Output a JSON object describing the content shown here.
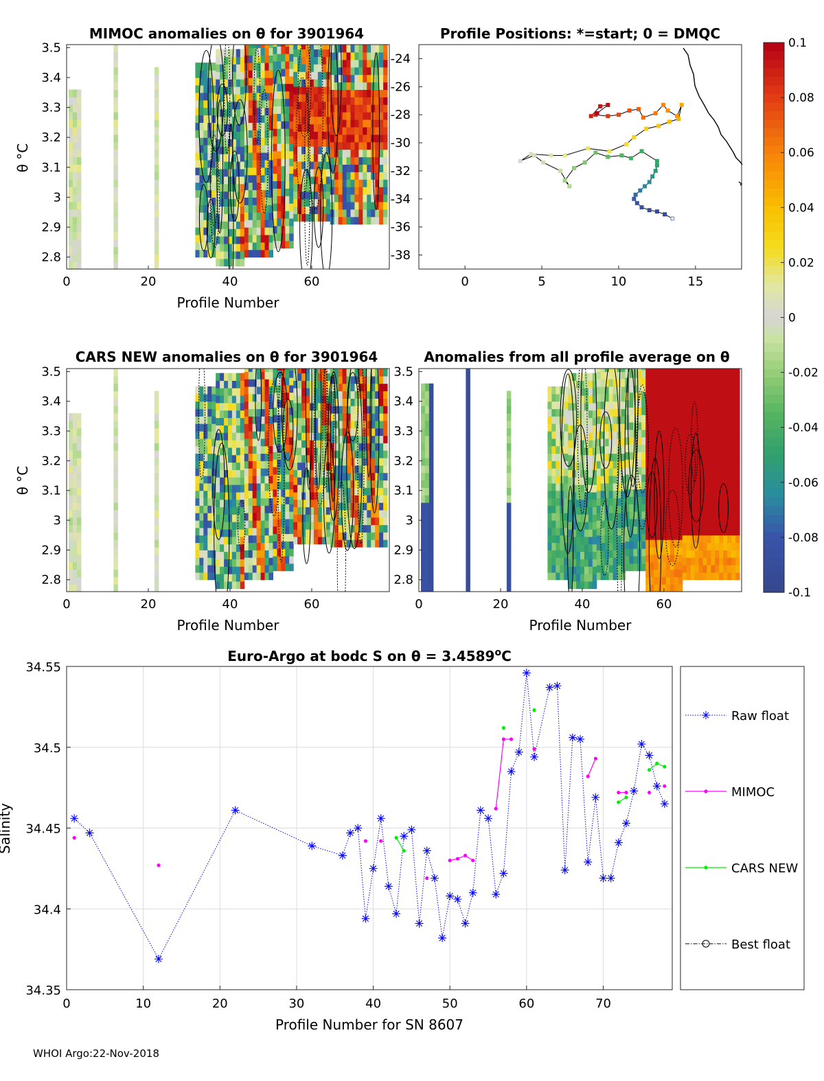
{
  "footer": "WHOI Argo:22-Nov-2018",
  "chart_data": [
    {
      "id": "mimoc",
      "type": "heatmap",
      "title": "MIMOC anomalies on θ  for 3901964",
      "xlabel": "Profile Number",
      "ylabel": "θ °C",
      "xlim": [
        0,
        79
      ],
      "ylim": [
        2.76,
        3.51
      ],
      "xticks": [
        "0",
        "20",
        "40",
        "60"
      ],
      "yticks": [
        "2.8",
        "2.9",
        "3",
        "3.1",
        "3.2",
        "3.3",
        "3.4",
        "3.5"
      ],
      "colorbar": {
        "label_ticks": [
          "0.1",
          "0.08",
          "0.06",
          "0.04",
          "0.02",
          "0",
          "-0.02",
          "-0.04",
          "-0.06",
          "-0.08",
          "-0.1"
        ],
        "range": [
          -0.1,
          0.1
        ],
        "colormap": "parula-like-diverging"
      }
    },
    {
      "id": "positions",
      "type": "scatter",
      "title": "Profile Positions: *=start; 0 = DMQC",
      "xlim": [
        -3,
        18
      ],
      "ylim": [
        -39,
        -23
      ],
      "xticks": [
        "0",
        "5",
        "10",
        "15"
      ],
      "yticks": [
        "-24",
        "-26",
        "-28",
        "-30",
        "-32",
        "-34",
        "-36",
        "-38"
      ],
      "track": [
        [
          13.5,
          -35.4
        ],
        [
          13.0,
          -35.1
        ],
        [
          12.5,
          -34.9
        ],
        [
          12.0,
          -34.8
        ],
        [
          11.5,
          -34.6
        ],
        [
          11.2,
          -34.3
        ],
        [
          11.0,
          -34.0
        ],
        [
          11.1,
          -33.7
        ],
        [
          11.4,
          -33.4
        ],
        [
          11.7,
          -33.1
        ],
        [
          12.0,
          -32.8
        ],
        [
          12.2,
          -32.4
        ],
        [
          12.4,
          -32.0
        ],
        [
          12.5,
          -31.6
        ],
        [
          12.5,
          -31.3
        ],
        [
          11.5,
          -30.6
        ],
        [
          10.8,
          -31.1
        ],
        [
          10.2,
          -30.9
        ],
        [
          9.3,
          -31.0
        ],
        [
          8.5,
          -30.7
        ],
        [
          7.8,
          -31.4
        ],
        [
          7.1,
          -31.8
        ],
        [
          6.5,
          -32.7
        ],
        [
          6.8,
          -33.1
        ],
        [
          6.2,
          -32.0
        ],
        [
          5.1,
          -31.4
        ],
        [
          4.5,
          -30.9
        ],
        [
          3.6,
          -31.3
        ],
        [
          4.3,
          -30.8
        ],
        [
          5.6,
          -30.9
        ],
        [
          6.5,
          -30.9
        ],
        [
          8.0,
          -30.4
        ],
        [
          9.4,
          -30.6
        ],
        [
          10.5,
          -30.1
        ],
        [
          11.0,
          -29.6
        ],
        [
          11.8,
          -29.0
        ],
        [
          12.6,
          -28.8
        ],
        [
          13.3,
          -28.5
        ],
        [
          13.9,
          -28.3
        ],
        [
          14.1,
          -27.3
        ],
        [
          13.8,
          -28.1
        ],
        [
          13.2,
          -27.7
        ],
        [
          12.9,
          -27.3
        ],
        [
          12.4,
          -27.9
        ],
        [
          11.6,
          -28.2
        ],
        [
          11.3,
          -27.6
        ],
        [
          10.7,
          -27.7
        ],
        [
          10.0,
          -28.0
        ],
        [
          9.3,
          -28.1
        ],
        [
          8.5,
          -28.0
        ],
        [
          8.2,
          -28.1
        ],
        [
          8.8,
          -27.4
        ],
        [
          9.3,
          -27.3
        ],
        [
          8.6,
          -27.9
        ]
      ]
    },
    {
      "id": "cars",
      "type": "heatmap",
      "title": "CARS NEW anomalies on θ for 3901964",
      "xlabel": "Profile Number",
      "ylabel": "θ °C",
      "xlim": [
        0,
        79
      ],
      "ylim": [
        2.76,
        3.51
      ],
      "xticks": [
        "0",
        "20",
        "40",
        "60"
      ],
      "yticks": [
        "2.8",
        "2.9",
        "3",
        "3.1",
        "3.2",
        "3.3",
        "3.4",
        "3.5"
      ]
    },
    {
      "id": "allprof",
      "type": "heatmap",
      "title": "Anomalies from all profile average on θ",
      "xlabel": "Profile Number",
      "xlim": [
        0,
        79
      ],
      "ylim": [
        2.76,
        3.51
      ],
      "xticks": [
        "0",
        "20",
        "40",
        "60"
      ],
      "yticks": [
        "2.8",
        "2.9",
        "3",
        "3.1",
        "3.2",
        "3.3",
        "3.4",
        "3.5"
      ]
    },
    {
      "id": "salinity",
      "type": "line",
      "title": "Euro-Argo at bodc S on θ = 3.4589°C",
      "title_prefix": "Euro-Argo at bodc S on θ = 3.4589",
      "title_sup": "o",
      "title_suffix": "C",
      "xlabel": "Profile Number for SN 8607",
      "ylabel": "Salinity",
      "xlim": [
        0,
        79
      ],
      "ylim": [
        34.35,
        34.55
      ],
      "xticks": [
        "0",
        "10",
        "20",
        "30",
        "40",
        "50",
        "60",
        "70"
      ],
      "yticks": [
        "34.35",
        "34.4",
        "34.45",
        "34.5",
        "34.55"
      ],
      "legend": [
        "Raw float",
        "MIMOC",
        "CARS NEW",
        "Best float"
      ],
      "series": [
        {
          "name": "Raw float",
          "color": "#0000ff",
          "points": [
            [
              1,
              34.456
            ],
            [
              3,
              34.447
            ],
            [
              12,
              34.369
            ],
            [
              22,
              34.461
            ],
            [
              32,
              34.439
            ],
            [
              36,
              34.433
            ],
            [
              37,
              34.447
            ],
            [
              38,
              34.45
            ],
            [
              39,
              34.394
            ],
            [
              40,
              34.425
            ],
            [
              41,
              34.456
            ],
            [
              42,
              34.414
            ],
            [
              43,
              34.397
            ],
            [
              44,
              34.445
            ],
            [
              45,
              34.449
            ],
            [
              46,
              34.391
            ],
            [
              47,
              34.436
            ],
            [
              48,
              34.419
            ],
            [
              49,
              34.382
            ],
            [
              50,
              34.408
            ],
            [
              51,
              34.406
            ],
            [
              52,
              34.391
            ],
            [
              53,
              34.41
            ],
            [
              54,
              34.461
            ],
            [
              55,
              34.456
            ],
            [
              56,
              34.409
            ],
            [
              57,
              34.422
            ],
            [
              58,
              34.485
            ],
            [
              59,
              34.497
            ],
            [
              60,
              34.546
            ],
            [
              61,
              34.494
            ],
            [
              63,
              34.537
            ],
            [
              64,
              34.538
            ],
            [
              65,
              34.424
            ],
            [
              66,
              34.506
            ],
            [
              67,
              34.505
            ],
            [
              68,
              34.429
            ],
            [
              69,
              34.469
            ],
            [
              70,
              34.419
            ],
            [
              71,
              34.419
            ],
            [
              72,
              34.441
            ],
            [
              73,
              34.453
            ],
            [
              74,
              34.473
            ],
            [
              75,
              34.502
            ],
            [
              76,
              34.495
            ],
            [
              77,
              34.476
            ],
            [
              78,
              34.465
            ]
          ]
        },
        {
          "name": "MIMOC",
          "color": "#ff00ff",
          "segments": [
            [
              [
                1,
                34.444
              ]
            ],
            [
              [
                12,
                34.427
              ]
            ],
            [
              [
                39,
                34.442
              ]
            ],
            [
              [
                41,
                34.442
              ]
            ],
            [
              [
                47,
                34.419
              ]
            ],
            [
              [
                50,
                34.43
              ],
              [
                51,
                34.431
              ],
              [
                52,
                34.433
              ],
              [
                53,
                34.43
              ]
            ],
            [
              [
                56,
                34.462
              ],
              [
                57,
                34.505
              ],
              [
                58,
                34.505
              ]
            ],
            [
              [
                61,
                34.499
              ]
            ],
            [
              [
                68,
                34.482
              ],
              [
                69,
                34.493
              ]
            ],
            [
              [
                72,
                34.472
              ],
              [
                73,
                34.472
              ]
            ],
            [
              [
                76,
                34.472
              ]
            ],
            [
              [
                78,
                34.476
              ]
            ]
          ]
        },
        {
          "name": "CARS NEW",
          "color": "#00ee00",
          "segments": [
            [
              [
                43,
                34.444
              ],
              [
                44,
                34.436
              ]
            ],
            [
              [
                57,
                34.512
              ]
            ],
            [
              [
                61,
                34.523
              ]
            ],
            [
              [
                72,
                34.466
              ],
              [
                73,
                34.469
              ]
            ],
            [
              [
                76,
                34.486
              ],
              [
                77,
                34.49
              ],
              [
                78,
                34.488
              ]
            ]
          ]
        },
        {
          "name": "Best float",
          "color": "#000000",
          "segments": []
        }
      ]
    }
  ]
}
